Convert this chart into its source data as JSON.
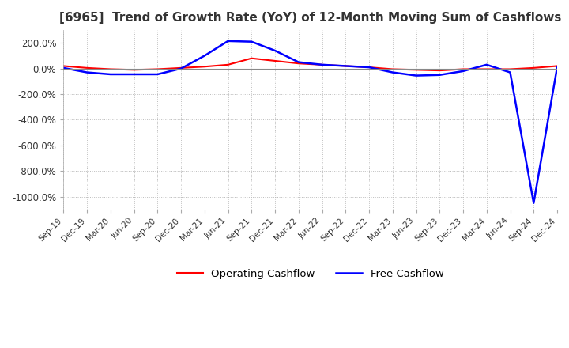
{
  "title": "[6965]  Trend of Growth Rate (YoY) of 12-Month Moving Sum of Cashflows",
  "title_fontsize": 11,
  "ylim": [
    -1100,
    300
  ],
  "yticks": [
    200,
    0,
    -200,
    -400,
    -600,
    -800,
    -1000
  ],
  "ytick_labels": [
    "200.0%",
    "0.0%",
    "-200.0%",
    "-400.0%",
    "-600.0%",
    "-800.0%",
    "-1000.0%"
  ],
  "background_color": "#ffffff",
  "grid_color": "#bbbbbb",
  "operating_color": "#ff0000",
  "free_color": "#0000ff",
  "legend_labels": [
    "Operating Cashflow",
    "Free Cashflow"
  ],
  "x_labels": [
    "Sep-19",
    "Dec-19",
    "Mar-20",
    "Jun-20",
    "Sep-20",
    "Dec-20",
    "Mar-21",
    "Jun-21",
    "Sep-21",
    "Dec-21",
    "Mar-22",
    "Jun-22",
    "Sep-22",
    "Dec-22",
    "Mar-23",
    "Jun-23",
    "Sep-23",
    "Dec-23",
    "Mar-24",
    "Jun-24",
    "Sep-24",
    "Dec-24"
  ],
  "operating_cashflow": [
    20,
    5,
    -5,
    -10,
    -5,
    5,
    15,
    30,
    80,
    60,
    40,
    30,
    20,
    10,
    -5,
    -10,
    -15,
    -5,
    -5,
    -5,
    5,
    20
  ],
  "free_cashflow": [
    5,
    -30,
    -45,
    -45,
    -45,
    0,
    100,
    215,
    210,
    140,
    50,
    30,
    20,
    10,
    -30,
    -55,
    -50,
    -20,
    30,
    -30,
    -1050,
    10
  ]
}
